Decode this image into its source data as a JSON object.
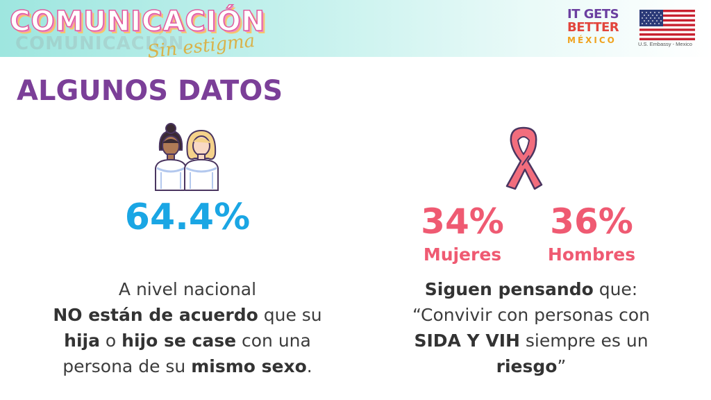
{
  "header": {
    "brand_title": "COMUNICACIÓN",
    "brand_subtitle": "Sin estigma",
    "logo_line1": "IT GETS",
    "logo_line2": "BETTER",
    "logo_line3": "MÉXICO",
    "embassy": "U.S. Embassy - Mexico"
  },
  "section_title": "ALGUNOS DATOS",
  "left": {
    "icon": "two-brides-icon",
    "stat": "64.4%",
    "text": {
      "l1": "A nivel nacional",
      "l2_b1": "NO están de acuerdo",
      "l2_t1": " que su",
      "l3_b1": "hija",
      "l3_t1": " o ",
      "l3_b2": "hijo se case",
      "l3_t2": " con una",
      "l4_t1": "persona de su ",
      "l4_b1": "mismo sexo",
      "l4_t2": "."
    }
  },
  "right": {
    "icon": "awareness-ribbon-icon",
    "women_stat": "34%",
    "women_label": "Mujeres",
    "men_stat": "36%",
    "men_label": "Hombres",
    "text": {
      "l1_b1": "Siguen pensando",
      "l1_t1": " que:",
      "l2": "“Convivir con personas con",
      "l3_b1": "SIDA Y VIH",
      "l3_t1": " siempre es un",
      "l4_b1": "riesgo",
      "l4_t1": "”"
    }
  },
  "colors": {
    "title_purple": "#7b3f98",
    "stat_blue": "#1aa6e4",
    "stat_pink": "#ef5a72",
    "header_teal": "#9ee6df"
  }
}
